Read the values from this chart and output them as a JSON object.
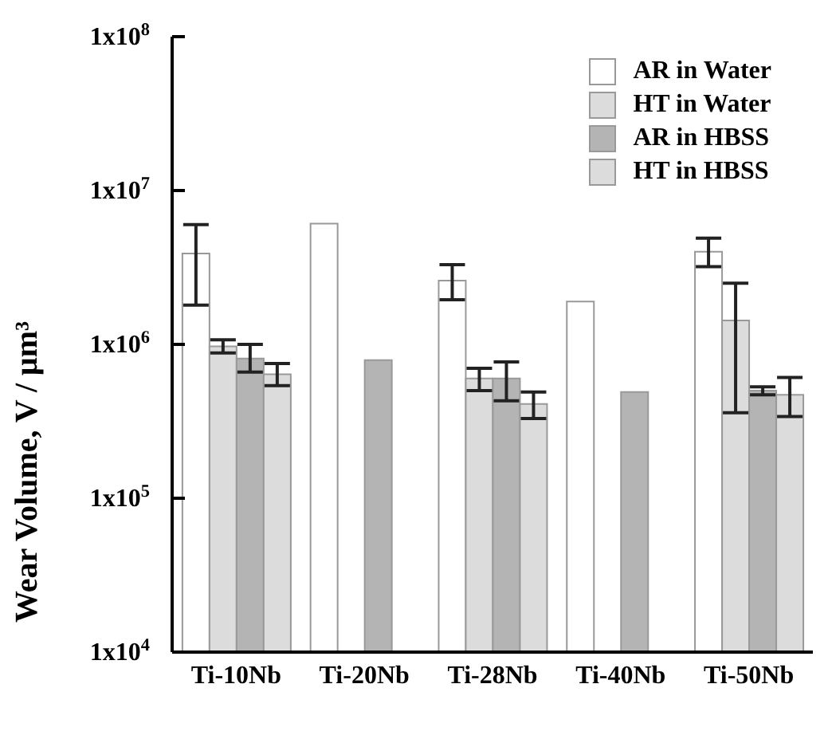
{
  "chart_data": {
    "type": "bar",
    "ylabel": "Wear Volume, V / μm³",
    "categories": [
      "Ti-10Nb",
      "Ti-20Nb",
      "Ti-28Nb",
      "Ti-40Nb",
      "Ti-50Nb"
    ],
    "log": "y",
    "ylim": [
      10000,
      100000000
    ],
    "yticks": [
      {
        "value": 10000,
        "label": "1x10$^{4}$"
      },
      {
        "value": 100000,
        "label": "1x10$^{5}$"
      },
      {
        "value": 1000000,
        "label": "1x10$^{6}$"
      },
      {
        "value": 10000000,
        "label": "1x10$^{7}$"
      },
      {
        "value": 100000000,
        "label": "1x10$^{8}$"
      }
    ],
    "legend": "top right",
    "grid": false,
    "series": [
      {
        "name": "AR in Water",
        "color": "#ffffff",
        "values": [
          3900000,
          6100000,
          2600000,
          1900000,
          4000000
        ],
        "errors": [
          [
            1800000,
            6000000
          ],
          null,
          [
            1950000,
            3300000
          ],
          null,
          [
            3200000,
            4900000
          ]
        ]
      },
      {
        "name": "HT in Water",
        "color": "#dcdcdc",
        "values": [
          970000,
          null,
          600000,
          null,
          1430000
        ],
        "errors": [
          [
            880000,
            1070000
          ],
          null,
          [
            500000,
            700000
          ],
          null,
          [
            360000,
            2500000
          ]
        ]
      },
      {
        "name": "AR in HBSS",
        "color": "#b4b4b4",
        "values": [
          810000,
          790000,
          600000,
          490000,
          500000
        ],
        "errors": [
          [
            660000,
            1000000
          ],
          null,
          [
            430000,
            770000
          ],
          null,
          [
            470000,
            530000
          ]
        ]
      },
      {
        "name": "HT in HBSS",
        "color": "#dcdcdc",
        "values": [
          640000,
          null,
          410000,
          null,
          470000
        ],
        "errors": [
          [
            540000,
            750000
          ],
          null,
          [
            330000,
            490000
          ],
          null,
          [
            340000,
            610000
          ]
        ]
      }
    ]
  }
}
